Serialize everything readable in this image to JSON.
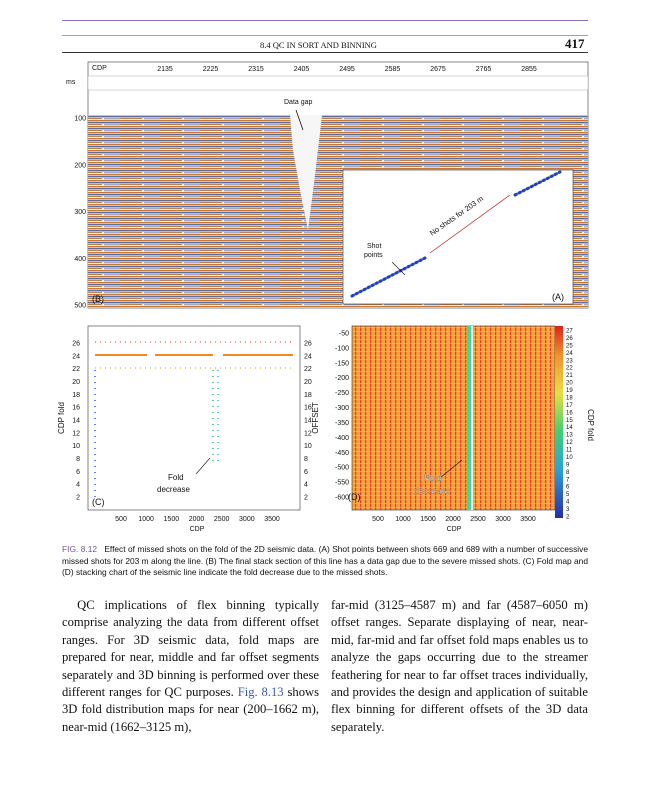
{
  "header": {
    "section": "8.4 QC IN SORT AND BINNING",
    "page": "417"
  },
  "figure": {
    "panel_b": {
      "x_label": "CDP",
      "x_ticks": [
        "2135",
        "2225",
        "2315",
        "2405",
        "2495",
        "2585",
        "2675",
        "2765",
        "2855"
      ],
      "y_label": "ms",
      "y_ticks": [
        "100",
        "200",
        "300",
        "400",
        "500"
      ],
      "annotation": "Data gap",
      "tag": "(B)"
    },
    "panel_a": {
      "annotation_gap": "No shots for 203 m",
      "annotation_shots": [
        "Shot",
        "points"
      ],
      "tag": "(A)"
    },
    "panel_c": {
      "y_label": "CDP fold",
      "y_ticks": [
        "26",
        "24",
        "22",
        "20",
        "18",
        "16",
        "14",
        "12",
        "10",
        "8",
        "6",
        "4",
        "2"
      ],
      "x_label": "CDP",
      "x_ticks": [
        "500",
        "1000",
        "1500",
        "2000",
        "2500",
        "3000",
        "3500"
      ],
      "annotation": [
        "Fold",
        "decrease"
      ],
      "tag": "(C)"
    },
    "panel_d": {
      "y_label": "OFFSET",
      "y_ticks": [
        "-50",
        "-100",
        "-150",
        "-200",
        "-250",
        "-300",
        "-350",
        "-400",
        "-450",
        "-500",
        "-550",
        "-600"
      ],
      "x_label": "CDP",
      "x_ticks": [
        "500",
        "1000",
        "1500",
        "2000",
        "2500",
        "3000",
        "3500"
      ],
      "annotation": [
        "Fold",
        "decrease"
      ],
      "tag": "(D)",
      "colorbar_label": "CDP fold",
      "colorbar_ticks": [
        "27",
        "26",
        "25",
        "24",
        "23",
        "22",
        "21",
        "20",
        "19",
        "18",
        "17",
        "16",
        "15",
        "14",
        "13",
        "12",
        "11",
        "10",
        "9",
        "8",
        "7",
        "6",
        "5",
        "4",
        "3",
        "2"
      ]
    },
    "caption": {
      "label": "FIG. 8.12",
      "text": "Effect of missed shots on the fold of the 2D seismic data. (A) Shot points between shots 669 and 689 with a number of successive missed shots for 203 m along the line. (B) The final stack section of this line has a data gap due to the severe missed shots. (C) Fold map and (D) stacking chart of the seismic line indicate the fold decrease due to the missed shots."
    }
  },
  "body": {
    "left": [
      "QC implications of flex binning typically comprise analyzing the data from different offset ranges. For 3D seismic data, fold maps are prepared for near, middle and far offset segments separately and 3D binning is performed over these different ranges for QC purposes. ",
      "Fig. 8.13",
      " shows 3D fold distribution maps for near (200–1662 m), near-mid (1662–3125 m),"
    ],
    "right": "far-mid (3125–4587 m) and far (4587–6050 m) offset ranges. Separate displaying of near, near-mid, far-mid and far offset fold maps enables us to analyze the gaps occurring due to the streamer feathering for near to far offset traces individually, and provides the design and application of suitable flex binning for different offsets of the 3D data separately."
  }
}
